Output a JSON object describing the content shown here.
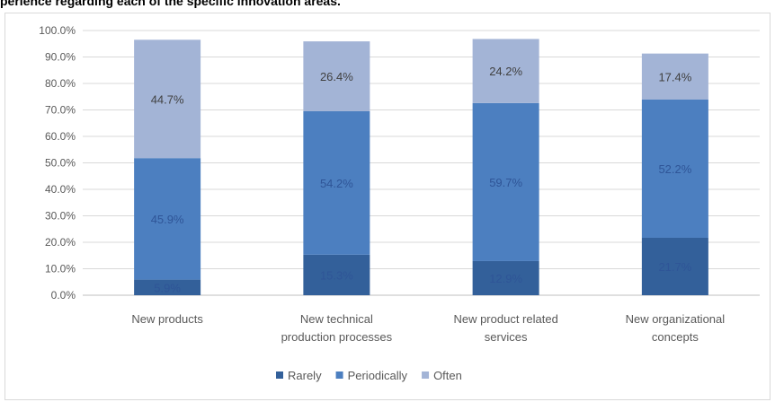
{
  "chart_data": {
    "type": "bar",
    "stacked": true,
    "title": "perience regarding each of the specific innovation areas.",
    "xlabel": "",
    "ylabel": "",
    "ylim": [
      0,
      100
    ],
    "y_ticks": [
      "0.0%",
      "10.0%",
      "20.0%",
      "30.0%",
      "40.0%",
      "50.0%",
      "60.0%",
      "70.0%",
      "80.0%",
      "90.0%",
      "100.0%"
    ],
    "categories": [
      [
        "New products"
      ],
      [
        "New technical",
        "production processes"
      ],
      [
        "New product related",
        "services"
      ],
      [
        "New organizational",
        "concepts"
      ]
    ],
    "series": [
      {
        "name": "Rarely",
        "color": "#33609a",
        "values": [
          5.9,
          15.3,
          12.9,
          21.7
        ],
        "labels": [
          "5.9%",
          "15.3%",
          "12.9%",
          "21.7%"
        ]
      },
      {
        "name": "Periodically",
        "color": "#4c7fc0",
        "values": [
          45.9,
          54.2,
          59.7,
          52.2
        ],
        "labels": [
          "45.9%",
          "54.2%",
          "59.7%",
          "52.2%"
        ]
      },
      {
        "name": "Often",
        "color": "#a3b4d6",
        "values": [
          44.7,
          26.4,
          24.2,
          17.4
        ],
        "labels": [
          "44.7%",
          "26.4%",
          "24.2%",
          "17.4%"
        ]
      }
    ],
    "grid": true,
    "legend_position": "bottom"
  }
}
